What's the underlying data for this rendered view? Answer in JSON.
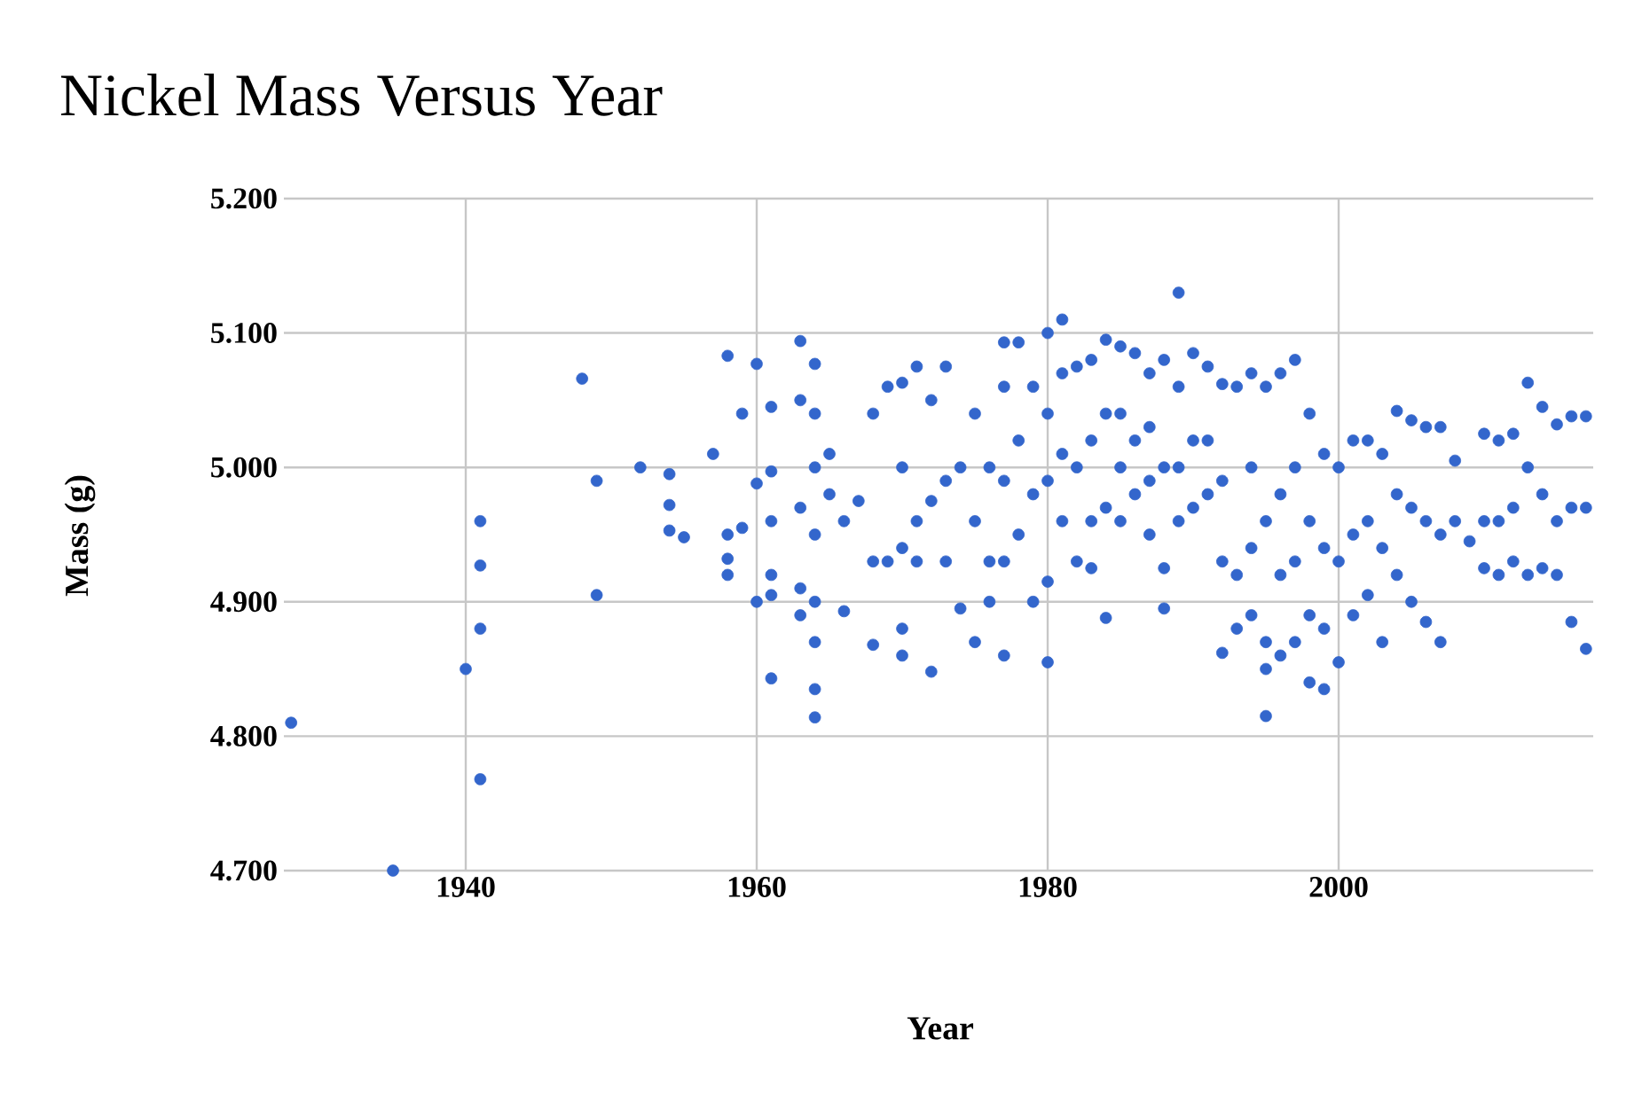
{
  "chart_data": {
    "type": "scatter",
    "title": "Nickel Mass Versus Year",
    "xlabel": "Year",
    "ylabel": "Mass (g)",
    "xlim": [
      1927.5,
      2017.5
    ],
    "xticks": [
      1940,
      1960,
      1980,
      2000
    ],
    "ylim": [
      4.7,
      5.2
    ],
    "yticks": [
      {
        "value": 4.7,
        "label": "4.700"
      },
      {
        "value": 4.8,
        "label": "4.800"
      },
      {
        "value": 4.9,
        "label": "4.900"
      },
      {
        "value": 5.0,
        "label": "5.000"
      },
      {
        "value": 5.1,
        "label": "5.100"
      },
      {
        "value": 5.2,
        "label": "5.200"
      }
    ],
    "grid": true,
    "marker": "circle",
    "series": [
      {
        "color": "#3366cc",
        "x": [
          1928,
          1935,
          1940,
          1941,
          1941,
          1941,
          1941,
          1948,
          1949,
          1949,
          1952,
          1954,
          1954,
          1954,
          1955,
          1957,
          1958,
          1958,
          1958,
          1958,
          1959,
          1959,
          1960,
          1960,
          1960,
          1961,
          1961,
          1961,
          1961,
          1961,
          1961,
          1963,
          1963,
          1963,
          1963,
          1963,
          1964,
          1964,
          1964,
          1964,
          1964,
          1964,
          1964,
          1964,
          1965,
          1965,
          1966,
          1966,
          1967,
          1968,
          1968,
          1968,
          1969,
          1969,
          1970,
          1970,
          1970,
          1970,
          1970,
          1971,
          1971,
          1971,
          1972,
          1972,
          1972,
          1973,
          1973,
          1973,
          1974,
          1974,
          1975,
          1975,
          1975,
          1976,
          1976,
          1976,
          1977,
          1977,
          1977,
          1977,
          1977,
          1978,
          1978,
          1978,
          1979,
          1979,
          1979,
          1980,
          1980,
          1980,
          1980,
          1980,
          1981,
          1981,
          1981,
          1981,
          1982,
          1982,
          1982,
          1983,
          1983,
          1983,
          1983,
          1984,
          1984,
          1984,
          1984,
          1985,
          1985,
          1985,
          1985,
          1986,
          1986,
          1986,
          1987,
          1987,
          1987,
          1987,
          1988,
          1988,
          1988,
          1988,
          1989,
          1989,
          1989,
          1989,
          1990,
          1990,
          1990,
          1991,
          1991,
          1991,
          1992,
          1992,
          1992,
          1992,
          1993,
          1993,
          1993,
          1994,
          1994,
          1994,
          1994,
          1995,
          1995,
          1995,
          1995,
          1995,
          1996,
          1996,
          1996,
          1996,
          1997,
          1997,
          1997,
          1997,
          1998,
          1998,
          1998,
          1998,
          1999,
          1999,
          1999,
          1999,
          2000,
          2000,
          2000,
          2001,
          2001,
          2001,
          2002,
          2002,
          2002,
          2003,
          2003,
          2003,
          2004,
          2004,
          2004,
          2005,
          2005,
          2005,
          2006,
          2006,
          2006,
          2007,
          2007,
          2007,
          2008,
          2008,
          2009,
          2010,
          2010,
          2010,
          2011,
          2011,
          2011,
          2012,
          2012,
          2012,
          2013,
          2013,
          2013,
          2014,
          2014,
          2014,
          2015,
          2015,
          2015,
          2016,
          2016,
          2016,
          2017,
          2017,
          2017
        ],
        "values": [
          4.81,
          4.7,
          4.85,
          4.96,
          4.927,
          4.88,
          4.768,
          5.066,
          4.99,
          4.905,
          5.0,
          4.995,
          4.972,
          4.953,
          4.948,
          5.01,
          5.083,
          4.95,
          4.932,
          4.92,
          5.04,
          4.955,
          5.077,
          4.988,
          4.9,
          5.045,
          4.997,
          4.96,
          4.92,
          4.905,
          4.843,
          5.094,
          5.05,
          4.97,
          4.91,
          4.89,
          5.077,
          5.04,
          5.0,
          4.95,
          4.9,
          4.87,
          4.835,
          4.814,
          5.01,
          4.98,
          4.96,
          4.893,
          4.975,
          5.04,
          4.93,
          4.868,
          5.06,
          4.93,
          5.063,
          5.0,
          4.94,
          4.88,
          4.86,
          5.075,
          4.96,
          4.93,
          5.05,
          4.975,
          4.848,
          5.075,
          4.99,
          4.93,
          5.0,
          4.895,
          5.04,
          4.96,
          4.87,
          5.0,
          4.93,
          4.9,
          5.093,
          5.06,
          4.99,
          4.93,
          4.86,
          5.093,
          5.02,
          4.95,
          5.06,
          4.98,
          4.9,
          5.1,
          5.04,
          4.99,
          4.915,
          4.855,
          5.11,
          5.07,
          5.01,
          4.96,
          5.075,
          5.0,
          4.93,
          5.08,
          5.02,
          4.96,
          4.925,
          5.095,
          5.04,
          4.97,
          4.888,
          5.09,
          5.04,
          5.0,
          4.96,
          5.085,
          5.02,
          4.98,
          5.07,
          5.03,
          4.99,
          4.95,
          5.08,
          5.0,
          4.925,
          4.895,
          5.13,
          5.06,
          5.0,
          4.96,
          5.085,
          5.02,
          4.97,
          5.075,
          5.02,
          4.98,
          5.062,
          4.99,
          4.93,
          4.862,
          5.06,
          4.92,
          4.88,
          5.07,
          5.0,
          4.94,
          4.89,
          5.06,
          4.96,
          4.87,
          4.85,
          4.815,
          5.07,
          4.98,
          4.92,
          4.86,
          5.08,
          5.0,
          4.93,
          4.87,
          5.04,
          4.96,
          4.89,
          4.84,
          5.01,
          4.94,
          4.88,
          4.835,
          5.0,
          4.93,
          4.855,
          5.02,
          4.95,
          4.89,
          5.02,
          4.96,
          4.905,
          5.01,
          4.94,
          4.87,
          5.042,
          4.98,
          4.92,
          5.035,
          4.97,
          4.9,
          5.03,
          4.96,
          4.885,
          5.03,
          4.95,
          4.87,
          5.005,
          4.96,
          4.945,
          5.025,
          4.96,
          4.925,
          5.02,
          4.96,
          4.92,
          5.025,
          4.97,
          4.93,
          5.063,
          5.0,
          4.92,
          5.045,
          4.98,
          4.925,
          5.032,
          4.96,
          4.92,
          5.038,
          4.97,
          4.885,
          5.038,
          4.97,
          4.865
        ]
      }
    ]
  }
}
